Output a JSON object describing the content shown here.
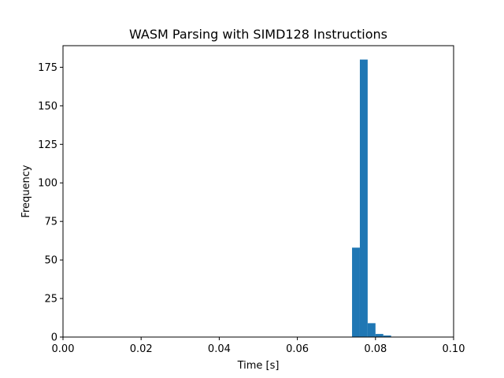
{
  "chart_data": {
    "type": "bar",
    "title": "WASM Parsing with SIMD128 Instructions",
    "xlabel": "Time [s]",
    "ylabel": "Frequency",
    "xlim": [
      0.0,
      0.1
    ],
    "ylim": [
      0,
      189
    ],
    "xticks": [
      0.0,
      0.02,
      0.04,
      0.06,
      0.08,
      0.1
    ],
    "xtick_labels": [
      "0.00",
      "0.02",
      "0.04",
      "0.06",
      "0.08",
      "0.10"
    ],
    "yticks": [
      0,
      25,
      50,
      75,
      100,
      125,
      150,
      175
    ],
    "ytick_labels": [
      "0",
      "25",
      "50",
      "75",
      "100",
      "125",
      "150",
      "175"
    ],
    "grid": false,
    "bar_color": "#1f77b4",
    "bins": [
      {
        "x0": 0.074,
        "x1": 0.076,
        "count": 58
      },
      {
        "x0": 0.076,
        "x1": 0.078,
        "count": 180
      },
      {
        "x0": 0.078,
        "x1": 0.08,
        "count": 9
      },
      {
        "x0": 0.08,
        "x1": 0.082,
        "count": 2
      },
      {
        "x0": 0.082,
        "x1": 0.084,
        "count": 1
      }
    ]
  }
}
